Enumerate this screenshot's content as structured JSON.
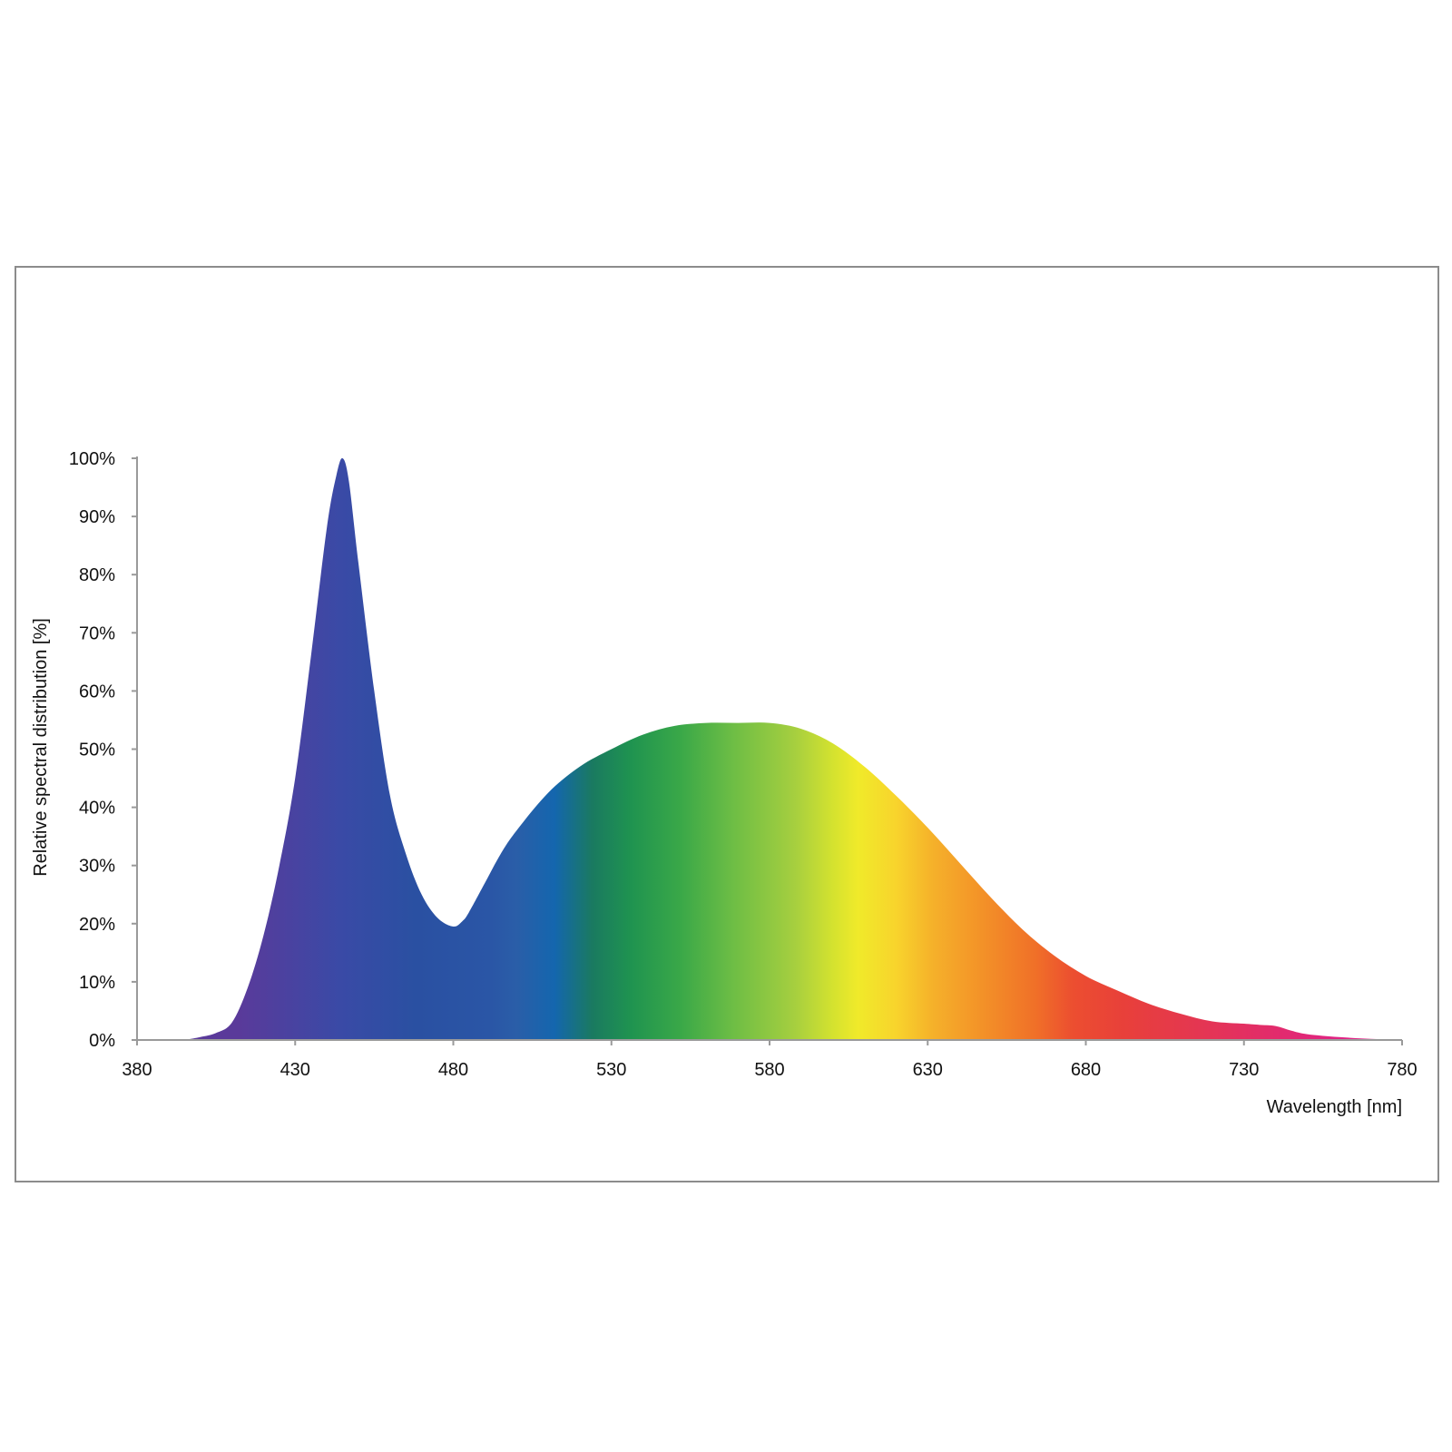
{
  "chart_data": {
    "type": "area",
    "xlabel": "Wavelength [nm]",
    "ylabel": "Relative spectral distribution [%]",
    "xlim": [
      380,
      780
    ],
    "ylim": [
      0,
      100
    ],
    "x_ticks": [
      380,
      430,
      480,
      530,
      580,
      630,
      680,
      730,
      780
    ],
    "y_ticks": [
      0,
      10,
      20,
      30,
      40,
      50,
      60,
      70,
      80,
      90,
      100
    ],
    "x_tick_labels": [
      "380",
      "430",
      "480",
      "530",
      "580",
      "630",
      "680",
      "730",
      "780"
    ],
    "y_tick_labels": [
      "0%",
      "10%",
      "20%",
      "30%",
      "40%",
      "50%",
      "60%",
      "70%",
      "80%",
      "90%",
      "100%"
    ],
    "grid": false,
    "fill": "visible-spectrum gradient",
    "series": [
      {
        "x": [
          395,
          400,
          405,
          410,
          415,
          420,
          425,
          430,
          435,
          440,
          443,
          445,
          447,
          450,
          455,
          460,
          465,
          470,
          475,
          480,
          483,
          485,
          490,
          495,
          500,
          510,
          520,
          530,
          540,
          550,
          560,
          570,
          580,
          590,
          600,
          610,
          620,
          630,
          640,
          650,
          660,
          670,
          680,
          690,
          700,
          710,
          720,
          730,
          735,
          740,
          745,
          750,
          760,
          770,
          780
        ],
        "y": [
          0.0,
          0.5,
          1.2,
          3.0,
          9.0,
          18.0,
          30.0,
          45.0,
          66.0,
          88.0,
          97.0,
          100.0,
          96.0,
          82.0,
          60.0,
          42.0,
          32.0,
          25.0,
          21.0,
          19.5,
          20.5,
          22.0,
          27.0,
          32.0,
          36.0,
          42.5,
          47.0,
          50.0,
          52.5,
          54.0,
          54.5,
          54.5,
          54.5,
          53.5,
          51.0,
          47.0,
          42.0,
          36.5,
          30.5,
          24.5,
          19.0,
          14.5,
          11.0,
          8.5,
          6.2,
          4.5,
          3.2,
          2.8,
          2.6,
          2.4,
          1.6,
          1.0,
          0.5,
          0.2,
          0.0
        ]
      }
    ]
  }
}
